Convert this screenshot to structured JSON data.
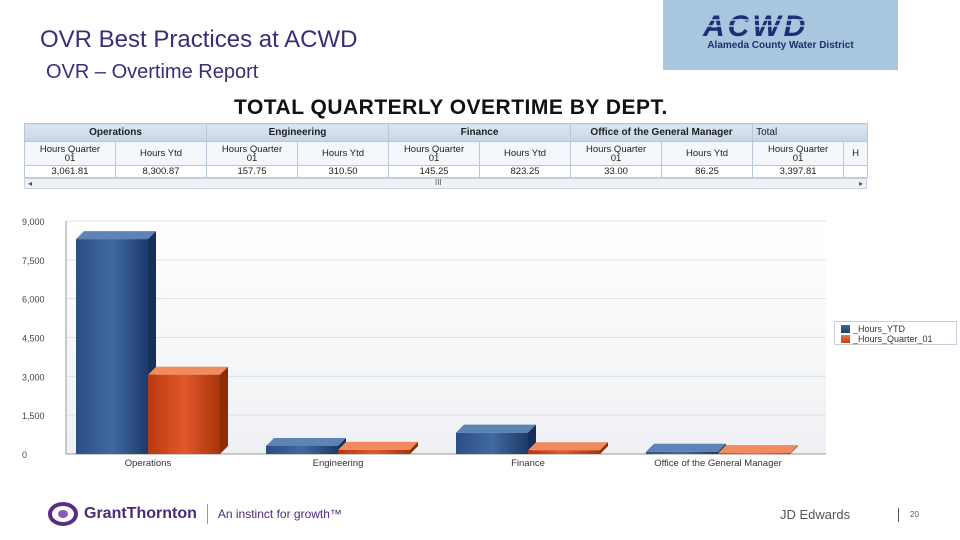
{
  "slide": {
    "title": "OVR Best Practices at ACWD",
    "subtitle": "OVR – Overtime Report",
    "logo_text": "ACWD",
    "logo_subtext": "Alameda County Water District",
    "report_heading": "TOTAL QUARTERLY OVERTIME BY DEPT."
  },
  "grid": {
    "dept_headers": [
      "Operations",
      "Engineering",
      "Finance",
      "Office of the General Manager",
      "Total"
    ],
    "sub_headers": [
      {
        "line1": "Hours Quarter",
        "line2": "01"
      },
      {
        "line1": "Hours Ytd",
        "line2": ""
      },
      {
        "line1": "Hours Quarter",
        "line2": "01"
      },
      {
        "line1": "Hours Ytd",
        "line2": ""
      },
      {
        "line1": "Hours Quarter",
        "line2": "01"
      },
      {
        "line1": "Hours Ytd",
        "line2": ""
      },
      {
        "line1": "Hours Quarter",
        "line2": "01"
      },
      {
        "line1": "Hours Ytd",
        "line2": ""
      },
      {
        "line1": "Hours Quarter",
        "line2": "01"
      },
      {
        "line1": "H",
        "line2": ""
      }
    ],
    "values": [
      "3,061.81",
      "8,300.87",
      "157.75",
      "310.50",
      "145.25",
      "823.25",
      "33.00",
      "86.25",
      "3,397.81",
      ""
    ],
    "scroll_left": "◂",
    "scroll_right": "▸",
    "scroll_thumb": "III"
  },
  "chart_data": {
    "type": "bar",
    "categories": [
      "Operations",
      "Engineering",
      "Finance",
      "Office of the General Manager"
    ],
    "series": [
      {
        "name": "_Hours_YTD",
        "color": "#1f3f73",
        "values": [
          8300.87,
          310.5,
          823.25,
          86.25
        ]
      },
      {
        "name": "_Hours_Quarter_01",
        "color": "#c9400f",
        "values": [
          3061.81,
          157.75,
          145.25,
          33.0
        ]
      }
    ],
    "yticks": [
      "9,000",
      "7,500",
      "6,000",
      "4,500",
      "3,000",
      "1,500",
      "0"
    ],
    "ytick_values": [
      9000,
      7500,
      6000,
      4500,
      3000,
      1500,
      0
    ],
    "ylim": [
      0,
      9000
    ],
    "grid": true,
    "legend_position": "right"
  },
  "footer": {
    "brand": "GrantThornton",
    "tagline": "An instinct for growth™",
    "presenter": "JD Edwards",
    "page_number": "20"
  }
}
